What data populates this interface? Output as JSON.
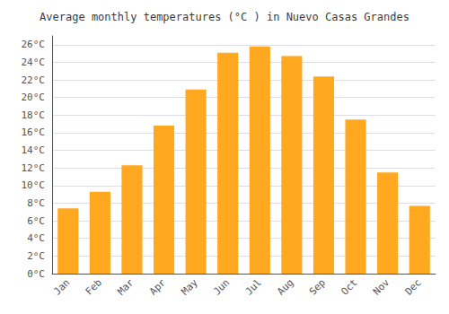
{
  "chart_data": {
    "type": "bar",
    "title": "Average monthly temperatures (°C ) in Nuevo Casas Grandes",
    "categories": [
      "Jan",
      "Feb",
      "Mar",
      "Apr",
      "May",
      "Jun",
      "Jul",
      "Aug",
      "Sep",
      "Oct",
      "Nov",
      "Dec"
    ],
    "values": [
      7.4,
      9.3,
      12.3,
      16.8,
      20.9,
      25.1,
      25.8,
      24.7,
      22.4,
      17.5,
      11.5,
      7.7
    ],
    "color": "#FFA820",
    "ylim": [
      0,
      27
    ],
    "yticks": [
      {
        "value": 0,
        "label": "0°C"
      },
      {
        "value": 2,
        "label": "2°C"
      },
      {
        "value": 4,
        "label": "4°C"
      },
      {
        "value": 6,
        "label": "6°C"
      },
      {
        "value": 8,
        "label": "8°C"
      },
      {
        "value": 10,
        "label": "10°C"
      },
      {
        "value": 12,
        "label": "12°C"
      },
      {
        "value": 14,
        "label": "14°C"
      },
      {
        "value": 16,
        "label": "16°C"
      },
      {
        "value": 18,
        "label": "18°C"
      },
      {
        "value": 20,
        "label": "20°C"
      },
      {
        "value": 22,
        "label": "22°C"
      },
      {
        "value": 24,
        "label": "24°C"
      },
      {
        "value": 26,
        "label": "26°C"
      }
    ],
    "grid": true
  }
}
